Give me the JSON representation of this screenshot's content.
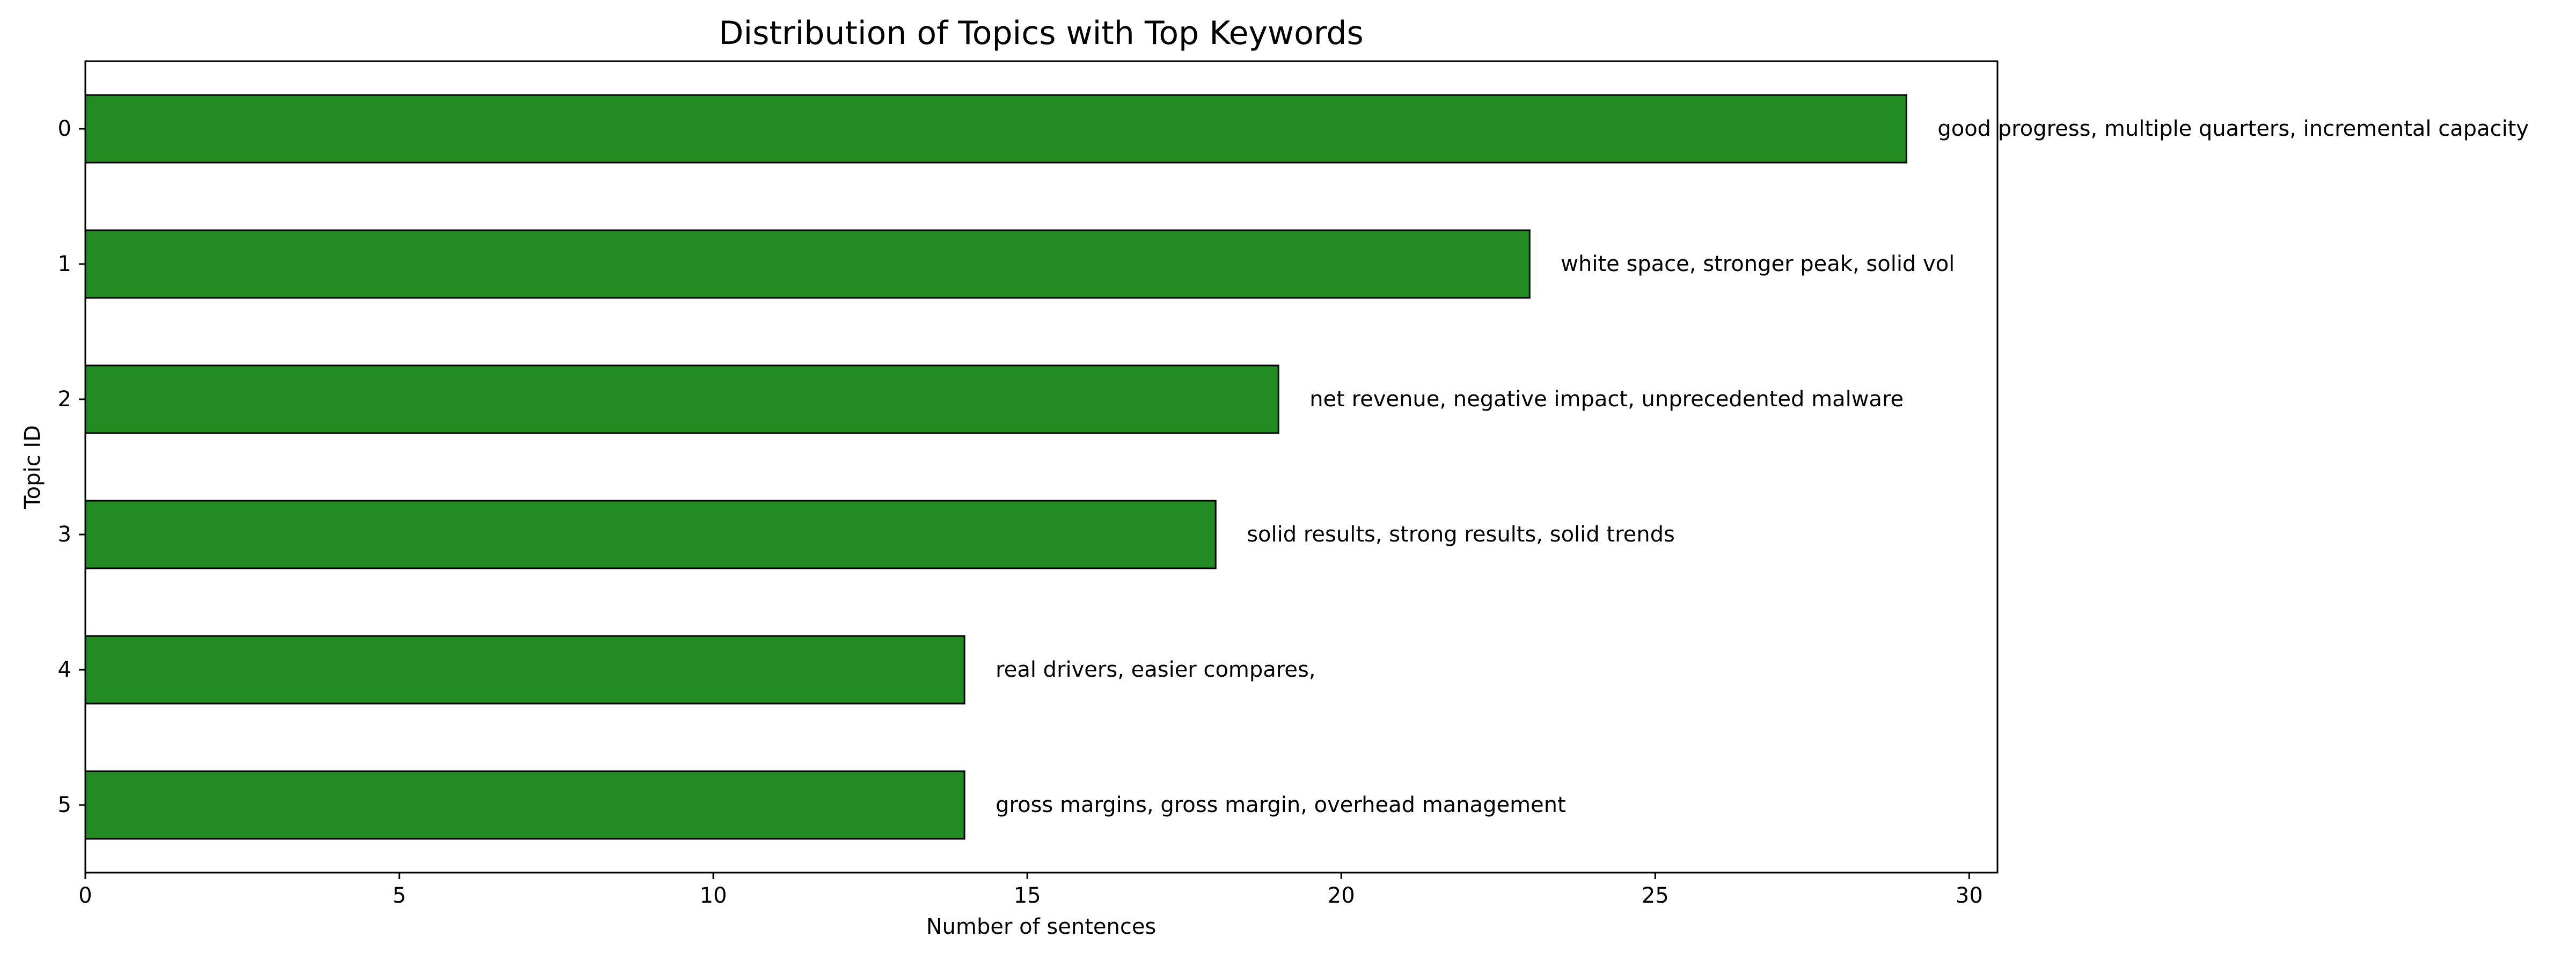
{
  "chart_data": {
    "type": "bar",
    "orientation": "horizontal",
    "title": "Distribution of Topics with Top Keywords",
    "xlabel": "Number of sentences",
    "ylabel": "Topic ID",
    "categories": [
      "0",
      "1",
      "2",
      "3",
      "4",
      "5"
    ],
    "values": [
      29,
      23,
      19,
      18,
      14,
      14
    ],
    "bar_labels": [
      "good progress, multiple quarters, incremental capacity",
      "white space, stronger peak, solid vol",
      "net revenue, negative impact, unprecedented malware",
      "solid results, strong results, solid trends",
      "real drivers, easier compares,",
      "gross margins, gross margin, overhead management"
    ],
    "xlim": [
      0,
      30.45
    ],
    "xticks": [
      "0",
      "5",
      "10",
      "15",
      "20",
      "25",
      "30"
    ],
    "grid": false,
    "bar_color": "#228b22",
    "edge_color": "#000000"
  }
}
